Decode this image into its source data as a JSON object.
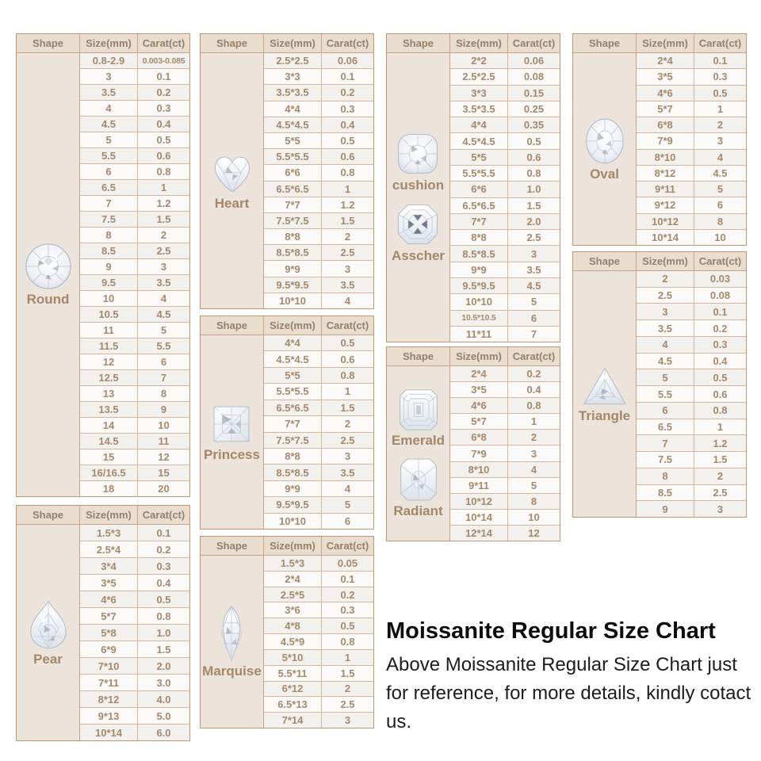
{
  "page": {
    "title": "Moissanite Regular Size Chart",
    "subtitle": "Above Moissanite Regular Size Chart just for reference, for more details, kindly cotact us."
  },
  "headers": {
    "shape": "Shape",
    "size": "Size(mm)",
    "carat": "Carat(ct)"
  },
  "colors": {
    "table_border": "#bf9572",
    "grid_line": "#d5b89c",
    "header_bg": "#e9ddd0",
    "shape_column_bg": "#ece4db",
    "cell_text": "#a5896b",
    "row_odd": "#f3f1ee",
    "row_even": "#fbfaf9",
    "caption_text": "#0d0d0d"
  },
  "tables": {
    "round": {
      "shape_label": "Round",
      "icon": "round-gem-icon",
      "rows": [
        [
          "0.8-2.9",
          "0.003-0.085"
        ],
        [
          "3",
          "0.1"
        ],
        [
          "3.5",
          "0.2"
        ],
        [
          "4",
          "0.3"
        ],
        [
          "4.5",
          "0.4"
        ],
        [
          "5",
          "0.5"
        ],
        [
          "5.5",
          "0.6"
        ],
        [
          "6",
          "0.8"
        ],
        [
          "6.5",
          "1"
        ],
        [
          "7",
          "1.2"
        ],
        [
          "7.5",
          "1.5"
        ],
        [
          "8",
          "2"
        ],
        [
          "8.5",
          "2.5"
        ],
        [
          "9",
          "3"
        ],
        [
          "9.5",
          "3.5"
        ],
        [
          "10",
          "4"
        ],
        [
          "10.5",
          "4.5"
        ],
        [
          "11",
          "5"
        ],
        [
          "11.5",
          "5.5"
        ],
        [
          "12",
          "6"
        ],
        [
          "12.5",
          "7"
        ],
        [
          "13",
          "8"
        ],
        [
          "13.5",
          "9"
        ],
        [
          "14",
          "10"
        ],
        [
          "14.5",
          "11"
        ],
        [
          "15",
          "12"
        ],
        [
          "16/16.5",
          "15"
        ],
        [
          "18",
          "20"
        ]
      ]
    },
    "pear": {
      "shape_label": "Pear",
      "icon": "pear-gem-icon",
      "rows": [
        [
          "1.5*3",
          "0.1"
        ],
        [
          "2.5*4",
          "0.2"
        ],
        [
          "3*4",
          "0.3"
        ],
        [
          "3*5",
          "0.4"
        ],
        [
          "4*6",
          "0.5"
        ],
        [
          "5*7",
          "0.8"
        ],
        [
          "5*8",
          "1.0"
        ],
        [
          "6*9",
          "1.5"
        ],
        [
          "7*10",
          "2.0"
        ],
        [
          "7*11",
          "3.0"
        ],
        [
          "8*12",
          "4.0"
        ],
        [
          "9*13",
          "5.0"
        ],
        [
          "10*14",
          "6.0"
        ]
      ]
    },
    "heart": {
      "shape_label": "Heart",
      "icon": "heart-gem-icon",
      "rows": [
        [
          "2.5*2.5",
          "0.06"
        ],
        [
          "3*3",
          "0.1"
        ],
        [
          "3.5*3.5",
          "0.2"
        ],
        [
          "4*4",
          "0.3"
        ],
        [
          "4.5*4.5",
          "0.4"
        ],
        [
          "5*5",
          "0.5"
        ],
        [
          "5.5*5.5",
          "0.6"
        ],
        [
          "6*6",
          "0.8"
        ],
        [
          "6.5*6.5",
          "1"
        ],
        [
          "7*7",
          "1.2"
        ],
        [
          "7.5*7.5",
          "1.5"
        ],
        [
          "8*8",
          "2"
        ],
        [
          "8.5*8.5",
          "2.5"
        ],
        [
          "9*9",
          "3"
        ],
        [
          "9.5*9.5",
          "3.5"
        ],
        [
          "10*10",
          "4"
        ]
      ]
    },
    "princess": {
      "shape_label": "Princess",
      "icon": "princess-gem-icon",
      "rows": [
        [
          "4*4",
          "0.5"
        ],
        [
          "4.5*4.5",
          "0.6"
        ],
        [
          "5*5",
          "0.8"
        ],
        [
          "5.5*5.5",
          "1"
        ],
        [
          "6.5*6.5",
          "1.5"
        ],
        [
          "7*7",
          "2"
        ],
        [
          "7.5*7.5",
          "2.5"
        ],
        [
          "8*8",
          "3"
        ],
        [
          "8.5*8.5",
          "3.5"
        ],
        [
          "9*9",
          "4"
        ],
        [
          "9.5*9.5",
          "5"
        ],
        [
          "10*10",
          "6"
        ]
      ]
    },
    "marquise": {
      "shape_label": "Marquise",
      "icon": "marquise-gem-icon",
      "rows": [
        [
          "1.5*3",
          "0.05"
        ],
        [
          "2*4",
          "0.1"
        ],
        [
          "2.5*5",
          "0.2"
        ],
        [
          "3*6",
          "0.3"
        ],
        [
          "4*8",
          "0.5"
        ],
        [
          "4.5*9",
          "0.8"
        ],
        [
          "5*10",
          "1"
        ],
        [
          "5.5*11",
          "1.5"
        ],
        [
          "6*12",
          "2"
        ],
        [
          "6.5*13",
          "2.5"
        ],
        [
          "7*14",
          "3"
        ]
      ]
    },
    "cushion_asscher": {
      "shape_labels": [
        "cushion",
        "Asscher"
      ],
      "icons": [
        "cushion-gem-icon",
        "asscher-gem-icon"
      ],
      "rows": [
        [
          "2*2",
          "0.06"
        ],
        [
          "2.5*2.5",
          "0.08"
        ],
        [
          "3*3",
          "0.15"
        ],
        [
          "3.5*3.5",
          "0.25"
        ],
        [
          "4*4",
          "0.35"
        ],
        [
          "4.5*4.5",
          "0.5"
        ],
        [
          "5*5",
          "0.6"
        ],
        [
          "5.5*5.5",
          "0.8"
        ],
        [
          "6*6",
          "1.0"
        ],
        [
          "6.5*6.5",
          "1.5"
        ],
        [
          "7*7",
          "2.0"
        ],
        [
          "8*8",
          "2.5"
        ],
        [
          "8.5*8.5",
          "3"
        ],
        [
          "9*9",
          "3.5"
        ],
        [
          "9.5*9.5",
          "4.5"
        ],
        [
          "10*10",
          "5"
        ],
        [
          "10.5*10.5",
          "6"
        ],
        [
          "11*11",
          "7"
        ]
      ]
    },
    "emerald_radiant": {
      "shape_labels": [
        "Emerald",
        "Radiant"
      ],
      "icons": [
        "emerald-gem-icon",
        "radiant-gem-icon"
      ],
      "rows": [
        [
          "2*4",
          "0.2"
        ],
        [
          "3*5",
          "0.4"
        ],
        [
          "4*6",
          "0.8"
        ],
        [
          "5*7",
          "1"
        ],
        [
          "6*8",
          "2"
        ],
        [
          "7*9",
          "3"
        ],
        [
          "8*10",
          "4"
        ],
        [
          "9*11",
          "5"
        ],
        [
          "10*12",
          "8"
        ],
        [
          "10*14",
          "10"
        ],
        [
          "12*14",
          "12"
        ]
      ]
    },
    "oval": {
      "shape_label": "Oval",
      "icon": "oval-gem-icon",
      "rows": [
        [
          "2*4",
          "0.1"
        ],
        [
          "3*5",
          "0.3"
        ],
        [
          "4*6",
          "0.5"
        ],
        [
          "5*7",
          "1"
        ],
        [
          "6*8",
          "2"
        ],
        [
          "7*9",
          "3"
        ],
        [
          "8*10",
          "4"
        ],
        [
          "8*12",
          "4.5"
        ],
        [
          "9*11",
          "5"
        ],
        [
          "9*12",
          "6"
        ],
        [
          "10*12",
          "8"
        ],
        [
          "10*14",
          "10"
        ]
      ]
    },
    "triangle": {
      "shape_label": "Triangle",
      "icon": "triangle-gem-icon",
      "rows": [
        [
          "2",
          "0.03"
        ],
        [
          "2.5",
          "0.08"
        ],
        [
          "3",
          "0.1"
        ],
        [
          "3.5",
          "0.2"
        ],
        [
          "4",
          "0.3"
        ],
        [
          "4.5",
          "0.4"
        ],
        [
          "5",
          "0.5"
        ],
        [
          "5.5",
          "0.6"
        ],
        [
          "6",
          "0.8"
        ],
        [
          "6.5",
          "1"
        ],
        [
          "7",
          "1.2"
        ],
        [
          "7.5",
          "1.5"
        ],
        [
          "8",
          "2"
        ],
        [
          "8.5",
          "2.5"
        ],
        [
          "9",
          "3"
        ]
      ]
    }
  }
}
